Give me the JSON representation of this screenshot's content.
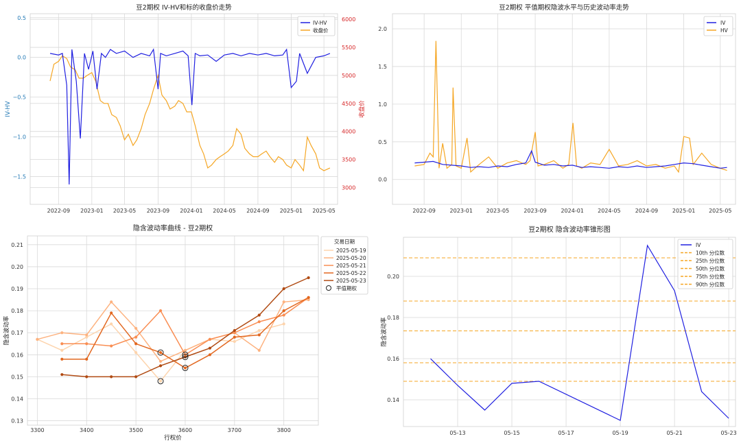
{
  "chart_data": [
    {
      "type": "line",
      "title": "豆2期权 IV-HV和标的收盘价走势",
      "ylabel_left": "IV-HV",
      "ylabel_right": "收盘价",
      "ylim_left": [
        -1.85,
        0.55
      ],
      "ylim_right": [
        2700,
        6100
      ],
      "yticks_left": [
        "0.5",
        "0.0",
        "−0.5",
        "−1.0",
        "−1.5"
      ],
      "yticks_left_values": [
        0.5,
        0.0,
        -0.5,
        -1.0,
        -1.5
      ],
      "yticks_right": [
        "6000",
        "5500",
        "5000",
        "4500",
        "4000",
        "3500",
        "3000"
      ],
      "yticks_right_values": [
        6000,
        5500,
        5000,
        4500,
        4000,
        3500,
        3000
      ],
      "xticks": [
        "2022-09",
        "2023-01",
        "2023-05",
        "2023-09",
        "2024-01",
        "2024-05",
        "2024-09",
        "2025-01",
        "2025-05"
      ],
      "xticks_values": [
        "2022-09-01",
        "2023-01-01",
        "2023-05-01",
        "2023-09-01",
        "2024-01-01",
        "2024-05-01",
        "2024-09-01",
        "2025-01-01",
        "2025-05-01"
      ],
      "xlim": [
        "2022-05-20",
        "2025-06-20"
      ],
      "legend": [
        "IV-HV",
        "收盘价"
      ],
      "legend_loc": "upper right",
      "colors": {
        "iv_hv": "#1f1fe0",
        "close": "#f5a623",
        "left_axis": "#1f77b4",
        "right_axis": "#d62728"
      },
      "series": [
        {
          "name": "IV-HV",
          "x": [
            "2022-08-01",
            "2022-09-01",
            "2022-09-15",
            "2022-10-01",
            "2022-10-10",
            "2022-10-20",
            "2022-11-05",
            "2022-11-20",
            "2022-12-05",
            "2022-12-20",
            "2023-01-05",
            "2023-01-20",
            "2023-02-05",
            "2023-02-20",
            "2023-03-10",
            "2023-04-01",
            "2023-05-01",
            "2023-06-01",
            "2023-07-01",
            "2023-08-01",
            "2023-08-15",
            "2023-09-01",
            "2023-09-10",
            "2023-10-01",
            "2023-11-01",
            "2023-12-01",
            "2023-12-20",
            "2024-01-03",
            "2024-01-15",
            "2024-02-01",
            "2024-03-01",
            "2024-04-01",
            "2024-05-01",
            "2024-06-01",
            "2024-07-01",
            "2024-08-01",
            "2024-09-01",
            "2024-10-01",
            "2024-11-01",
            "2024-12-01",
            "2024-12-15",
            "2025-01-01",
            "2025-01-20",
            "2025-02-01",
            "2025-03-01",
            "2025-04-01",
            "2025-05-01",
            "2025-05-23"
          ],
          "values": [
            0.05,
            0.03,
            0.05,
            -0.35,
            -1.6,
            0.1,
            -0.3,
            -1.02,
            0.05,
            -0.15,
            0.08,
            -0.4,
            0.05,
            0.0,
            0.1,
            0.05,
            0.08,
            0.0,
            0.05,
            0.02,
            0.1,
            -0.4,
            0.05,
            0.02,
            0.05,
            0.08,
            0.02,
            -0.6,
            0.05,
            0.02,
            0.03,
            -0.05,
            0.03,
            0.05,
            0.02,
            0.05,
            0.03,
            0.05,
            0.02,
            0.03,
            0.1,
            -0.38,
            -0.3,
            0.05,
            -0.2,
            0.0,
            0.02,
            0.05
          ]
        },
        {
          "name": "收盘价",
          "x": [
            "2022-08-01",
            "2022-08-15",
            "2022-09-01",
            "2022-09-15",
            "2022-10-01",
            "2022-10-15",
            "2022-11-01",
            "2022-11-15",
            "2022-12-01",
            "2022-12-15",
            "2023-01-01",
            "2023-01-15",
            "2023-02-01",
            "2023-02-15",
            "2023-03-01",
            "2023-03-15",
            "2023-04-01",
            "2023-04-15",
            "2023-05-01",
            "2023-05-15",
            "2023-06-01",
            "2023-06-15",
            "2023-07-01",
            "2023-07-15",
            "2023-08-01",
            "2023-08-15",
            "2023-09-01",
            "2023-09-15",
            "2023-10-01",
            "2023-10-15",
            "2023-11-01",
            "2023-11-15",
            "2023-12-01",
            "2023-12-15",
            "2024-01-01",
            "2024-01-15",
            "2024-02-01",
            "2024-02-15",
            "2024-03-01",
            "2024-03-15",
            "2024-04-01",
            "2024-04-15",
            "2024-05-01",
            "2024-05-15",
            "2024-06-01",
            "2024-06-15",
            "2024-07-01",
            "2024-07-15",
            "2024-08-01",
            "2024-08-15",
            "2024-09-01",
            "2024-09-15",
            "2024-10-01",
            "2024-10-15",
            "2024-11-01",
            "2024-11-15",
            "2024-12-01",
            "2024-12-15",
            "2025-01-01",
            "2025-01-15",
            "2025-02-01",
            "2025-02-15",
            "2025-03-01",
            "2025-03-15",
            "2025-04-01",
            "2025-04-15",
            "2025-05-01",
            "2025-05-23"
          ],
          "values": [
            4900,
            5200,
            5250,
            5350,
            5300,
            5150,
            5100,
            4950,
            4950,
            5000,
            5050,
            4900,
            4550,
            4500,
            4500,
            4300,
            4250,
            4100,
            3850,
            3950,
            3750,
            3850,
            4050,
            4300,
            4500,
            4750,
            5000,
            4650,
            4550,
            4400,
            4450,
            4550,
            4500,
            4350,
            4350,
            4100,
            3750,
            3600,
            3350,
            3400,
            3500,
            3550,
            3600,
            3650,
            3750,
            4050,
            3950,
            3700,
            3600,
            3550,
            3550,
            3600,
            3650,
            3550,
            3450,
            3550,
            3500,
            3400,
            3350,
            3500,
            3400,
            3300,
            3900,
            3750,
            3600,
            3350,
            3300,
            3350
          ]
        }
      ]
    },
    {
      "type": "line",
      "title": "豆2期权 平值期权隐波水平与历史波动率走势",
      "ylim": [
        -0.33,
        2.2
      ],
      "yticks": [
        "2.0",
        "1.5",
        "1.0",
        "0.5",
        "0.0"
      ],
      "yticks_values": [
        2.0,
        1.5,
        1.0,
        0.5,
        0.0
      ],
      "xticks": [
        "2022-09",
        "2023-01",
        "2023-05",
        "2023-09",
        "2024-01",
        "2024-05",
        "2024-09",
        "2025-01",
        "2025-05"
      ],
      "xticks_values": [
        "2022-09-01",
        "2023-01-01",
        "2023-05-01",
        "2023-09-01",
        "2024-01-01",
        "2024-05-01",
        "2024-09-01",
        "2025-01-01",
        "2025-05-01"
      ],
      "xlim": [
        "2022-05-20",
        "2025-06-20"
      ],
      "legend": [
        "IV",
        "HV"
      ],
      "legend_loc": "upper right",
      "colors": {
        "iv": "#1f1fe0",
        "hv": "#f5a623"
      },
      "series": [
        {
          "name": "IV",
          "x": [
            "2022-08-01",
            "2022-09-01",
            "2022-10-01",
            "2022-11-01",
            "2022-12-01",
            "2023-01-01",
            "2023-02-01",
            "2023-03-01",
            "2023-04-01",
            "2023-05-01",
            "2023-06-01",
            "2023-07-01",
            "2023-08-01",
            "2023-08-20",
            "2023-09-01",
            "2023-10-01",
            "2023-11-01",
            "2023-12-01",
            "2024-01-01",
            "2024-02-01",
            "2024-03-01",
            "2024-04-01",
            "2024-05-01",
            "2024-06-01",
            "2024-07-01",
            "2024-08-01",
            "2024-09-01",
            "2024-10-01",
            "2024-11-01",
            "2024-12-01",
            "2025-01-01",
            "2025-02-01",
            "2025-03-01",
            "2025-04-01",
            "2025-05-01",
            "2025-05-23"
          ],
          "values": [
            0.22,
            0.23,
            0.24,
            0.2,
            0.19,
            0.18,
            0.16,
            0.17,
            0.16,
            0.18,
            0.17,
            0.2,
            0.22,
            0.38,
            0.23,
            0.19,
            0.2,
            0.18,
            0.19,
            0.16,
            0.17,
            0.16,
            0.15,
            0.17,
            0.16,
            0.18,
            0.16,
            0.17,
            0.18,
            0.2,
            0.22,
            0.21,
            0.19,
            0.17,
            0.15,
            0.16
          ]
        },
        {
          "name": "HV",
          "x": [
            "2022-08-01",
            "2022-09-01",
            "2022-09-20",
            "2022-10-01",
            "2022-10-10",
            "2022-10-20",
            "2022-11-01",
            "2022-11-15",
            "2022-12-01",
            "2022-12-05",
            "2022-12-15",
            "2023-01-01",
            "2023-01-20",
            "2023-02-01",
            "2023-03-01",
            "2023-04-01",
            "2023-05-01",
            "2023-06-01",
            "2023-07-01",
            "2023-08-01",
            "2023-08-15",
            "2023-09-01",
            "2023-09-10",
            "2023-10-01",
            "2023-11-01",
            "2023-12-01",
            "2023-12-20",
            "2024-01-03",
            "2024-01-15",
            "2024-02-01",
            "2024-03-01",
            "2024-04-01",
            "2024-05-01",
            "2024-06-01",
            "2024-07-01",
            "2024-08-01",
            "2024-09-01",
            "2024-10-01",
            "2024-11-01",
            "2024-12-01",
            "2024-12-15",
            "2025-01-01",
            "2025-01-20",
            "2025-02-01",
            "2025-03-01",
            "2025-04-01",
            "2025-05-01",
            "2025-05-23"
          ],
          "values": [
            0.18,
            0.2,
            0.35,
            0.3,
            1.84,
            0.15,
            0.48,
            0.15,
            0.2,
            1.22,
            0.18,
            0.15,
            0.55,
            0.1,
            0.2,
            0.3,
            0.15,
            0.22,
            0.25,
            0.2,
            0.25,
            0.63,
            0.18,
            0.2,
            0.25,
            0.15,
            0.2,
            0.75,
            0.18,
            0.15,
            0.22,
            0.2,
            0.4,
            0.18,
            0.2,
            0.25,
            0.18,
            0.2,
            0.15,
            0.18,
            0.1,
            0.57,
            0.55,
            0.2,
            0.35,
            0.2,
            0.15,
            0.12
          ]
        }
      ]
    },
    {
      "type": "line",
      "title": "隐含波动率曲线 - 豆2期权",
      "xlabel": "行权价",
      "ylabel": "隐含波动率",
      "xlim": [
        3280,
        3870
      ],
      "ylim": [
        0.128,
        0.214
      ],
      "xticks": [
        "3300",
        "3400",
        "3500",
        "3600",
        "3700",
        "3800"
      ],
      "xticks_values": [
        3300,
        3400,
        3500,
        3600,
        3700,
        3800
      ],
      "yticks": [
        "0.21",
        "0.20",
        "0.19",
        "0.18",
        "0.17",
        "0.16",
        "0.15",
        "0.14",
        "0.13"
      ],
      "yticks_values": [
        0.21,
        0.2,
        0.19,
        0.18,
        0.17,
        0.16,
        0.15,
        0.14,
        0.13
      ],
      "legend_title": "交易日期",
      "legend_marker_label": "平值期权",
      "legend_loc": "outside right",
      "series": [
        {
          "name": "2025-05-19",
          "color": "#fdd4ad",
          "x": [
            3300,
            3350,
            3400,
            3450,
            3500,
            3550,
            3600,
            3650,
            3700,
            3750,
            3800
          ],
          "values": [
            0.167,
            0.162,
            0.168,
            0.174,
            0.161,
            0.148,
            0.162,
            0.167,
            0.166,
            0.171,
            0.174
          ]
        },
        {
          "name": "2025-05-20",
          "color": "#fdb27f",
          "x": [
            3300,
            3350,
            3400,
            3450,
            3500,
            3550,
            3600,
            3650,
            3700,
            3750,
            3800,
            3850
          ],
          "values": [
            0.167,
            0.17,
            0.169,
            0.184,
            0.172,
            0.157,
            0.162,
            0.167,
            0.17,
            0.162,
            0.184,
            0.185
          ]
        },
        {
          "name": "2025-05-21",
          "color": "#f98d52",
          "x": [
            3350,
            3400,
            3450,
            3500,
            3550,
            3600,
            3650,
            3700,
            3750,
            3800,
            3850
          ],
          "values": [
            0.165,
            0.165,
            0.164,
            0.168,
            0.18,
            0.16,
            0.167,
            0.17,
            0.175,
            0.178,
            0.186
          ]
        },
        {
          "name": "2025-05-22",
          "color": "#e2671f",
          "x": [
            3350,
            3400,
            3450,
            3500,
            3550,
            3600,
            3650,
            3700,
            3750,
            3800,
            3850
          ],
          "values": [
            0.158,
            0.158,
            0.179,
            0.165,
            0.161,
            0.154,
            0.16,
            0.168,
            0.169,
            0.18,
            0.186
          ]
        },
        {
          "name": "2025-05-23",
          "color": "#b04a12",
          "x": [
            3350,
            3400,
            3450,
            3500,
            3550,
            3600,
            3650,
            3700,
            3750,
            3800,
            3850
          ],
          "values": [
            0.151,
            0.15,
            0.15,
            0.15,
            0.155,
            0.159,
            0.163,
            0.171,
            0.178,
            0.19,
            0.195
          ]
        }
      ],
      "atm_points": {
        "x": [
          3550,
          3550,
          3600,
          3600,
          3600
        ],
        "values": [
          0.148,
          0.161,
          0.16,
          0.159,
          0.154
        ]
      }
    },
    {
      "type": "line",
      "title": "豆2期权 隐含波动率锥形图",
      "ylabel": "隐含波动率",
      "ylim": [
        0.127,
        0.219
      ],
      "yticks": [
        "0.20",
        "0.18",
        "0.16",
        "0.14"
      ],
      "yticks_values": [
        0.2,
        0.18,
        0.16,
        0.14
      ],
      "xlim": [
        "2025-05-11",
        "2025-05-23T06:00"
      ],
      "xticks": [
        "05-13",
        "05-15",
        "05-17",
        "05-19",
        "05-21",
        "05-23"
      ],
      "xticks_values": [
        "2025-05-13",
        "2025-05-15",
        "2025-05-17",
        "2025-05-19",
        "2025-05-21",
        "2025-05-23"
      ],
      "legend_loc": "upper right",
      "colors": {
        "iv": "#1f1fe0",
        "percentile": "#f5a623"
      },
      "series": [
        {
          "name": "IV",
          "x": [
            "2025-05-12",
            "2025-05-13",
            "2025-05-14",
            "2025-05-15",
            "2025-05-16",
            "2025-05-19",
            "2025-05-20",
            "2025-05-21",
            "2025-05-22",
            "2025-05-23"
          ],
          "values": [
            0.16,
            0.147,
            0.135,
            0.148,
            0.149,
            0.13,
            0.215,
            0.193,
            0.144,
            0.131
          ]
        }
      ],
      "percentiles": [
        {
          "name": "10th 分位数",
          "value": 0.149
        },
        {
          "name": "25th 分位数",
          "value": 0.158
        },
        {
          "name": "50th 分位数",
          "value": 0.1735
        },
        {
          "name": "75th 分位数",
          "value": 0.188
        },
        {
          "name": "90th 分位数",
          "value": 0.209
        }
      ]
    }
  ]
}
